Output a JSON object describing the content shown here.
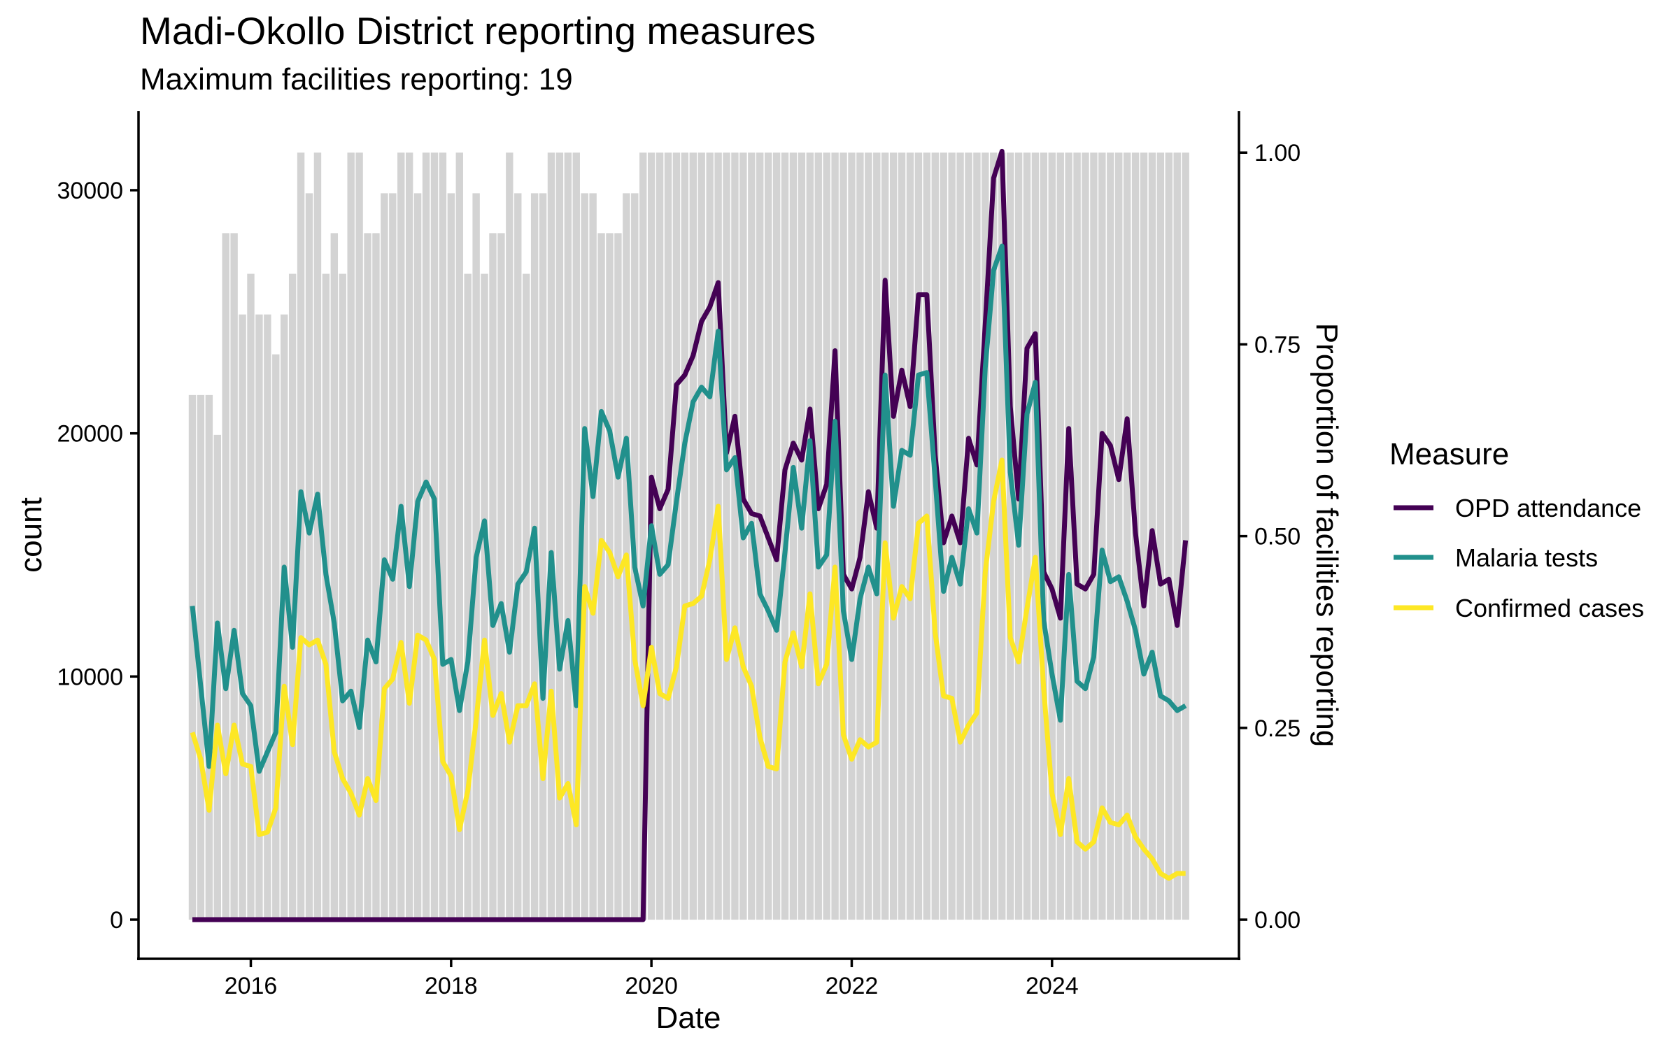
{
  "chart_data": {
    "type": "line",
    "title": "Madi-Okollo District reporting measures",
    "subtitle": "Maximum facilities reporting: 19",
    "xlabel": "Date",
    "ylabel": "count",
    "y2label": "Proportion of facilities reporting",
    "xlim": [
      "2014-12",
      "2025-11"
    ],
    "ylim": [
      -1610,
      33250
    ],
    "y2lim": [
      -0.051,
      1.054
    ],
    "grid": false,
    "legend": {
      "title": "Measure",
      "position": "right"
    },
    "x_ticks": [
      "2016",
      "2018",
      "2020",
      "2022",
      "2024"
    ],
    "y_ticks": [
      0,
      10000,
      20000,
      30000
    ],
    "y_tick_labels": [
      "0",
      "10000",
      "20000",
      "30000"
    ],
    "y2_ticks": [
      0,
      0.25,
      0.5,
      0.75,
      1
    ],
    "y2_tick_labels": [
      "0.00",
      "0.25",
      "0.50",
      "0.75",
      "1.00"
    ],
    "x": [
      "2015-06",
      "2015-07",
      "2015-08",
      "2015-09",
      "2015-10",
      "2015-11",
      "2015-12",
      "2016-01",
      "2016-02",
      "2016-03",
      "2016-04",
      "2016-05",
      "2016-06",
      "2016-07",
      "2016-08",
      "2016-09",
      "2016-10",
      "2016-11",
      "2016-12",
      "2017-01",
      "2017-02",
      "2017-03",
      "2017-04",
      "2017-05",
      "2017-06",
      "2017-07",
      "2017-08",
      "2017-09",
      "2017-10",
      "2017-11",
      "2017-12",
      "2018-01",
      "2018-02",
      "2018-03",
      "2018-04",
      "2018-05",
      "2018-06",
      "2018-07",
      "2018-08",
      "2018-09",
      "2018-10",
      "2018-11",
      "2018-12",
      "2019-01",
      "2019-02",
      "2019-03",
      "2019-04",
      "2019-05",
      "2019-06",
      "2019-07",
      "2019-08",
      "2019-09",
      "2019-10",
      "2019-11",
      "2019-12",
      "2020-01",
      "2020-02",
      "2020-03",
      "2020-04",
      "2020-05",
      "2020-06",
      "2020-07",
      "2020-08",
      "2020-09",
      "2020-10",
      "2020-11",
      "2020-12",
      "2021-01",
      "2021-02",
      "2021-03",
      "2021-04",
      "2021-05",
      "2021-06",
      "2021-07",
      "2021-08",
      "2021-09",
      "2021-10",
      "2021-11",
      "2021-12",
      "2022-01",
      "2022-02",
      "2022-03",
      "2022-04",
      "2022-05",
      "2022-06",
      "2022-07",
      "2022-08",
      "2022-09",
      "2022-10",
      "2022-11",
      "2022-12",
      "2023-01",
      "2023-02",
      "2023-03",
      "2023-04",
      "2023-05",
      "2023-06",
      "2023-07",
      "2023-08",
      "2023-09",
      "2023-10",
      "2023-11",
      "2023-12",
      "2024-01",
      "2024-02",
      "2024-03",
      "2024-04",
      "2024-05",
      "2024-06",
      "2024-07",
      "2024-08",
      "2024-09",
      "2024-10",
      "2024-11",
      "2024-12",
      "2025-01",
      "2025-02",
      "2025-03",
      "2025-04",
      "2025-05"
    ],
    "bars": {
      "name": "Proportion of facilities reporting",
      "axis": "right",
      "color": "#D3D3D3",
      "values": [
        0.684,
        0.684,
        0.684,
        0.632,
        0.895,
        0.895,
        0.789,
        0.842,
        0.789,
        0.789,
        0.737,
        0.789,
        0.842,
        1,
        0.947,
        1,
        0.842,
        0.895,
        0.842,
        1,
        1,
        0.895,
        0.895,
        0.947,
        0.947,
        1,
        1,
        0.947,
        1,
        1,
        1,
        0.947,
        1,
        0.842,
        0.947,
        0.842,
        0.895,
        0.895,
        1,
        0.947,
        0.842,
        0.947,
        0.947,
        1,
        1,
        1,
        1,
        0.947,
        0.947,
        0.895,
        0.895,
        0.895,
        0.947,
        0.947,
        1,
        1,
        1,
        1,
        1,
        1,
        1,
        1,
        1,
        1,
        1,
        1,
        1,
        1,
        1,
        1,
        1,
        1,
        1,
        1,
        1,
        1,
        1,
        1,
        1,
        1,
        1,
        1,
        1,
        1,
        1,
        1,
        1,
        1,
        1,
        1,
        1,
        1,
        1,
        1,
        1,
        1,
        1,
        1,
        1,
        1,
        1,
        1,
        1,
        1,
        1,
        1,
        1,
        1,
        1,
        1,
        1,
        1,
        1,
        1,
        1,
        1,
        1,
        1,
        1,
        1
      ]
    },
    "series": [
      {
        "name": "OPD attendance",
        "color": "#440154",
        "values": [
          0,
          0,
          0,
          0,
          0,
          0,
          0,
          0,
          0,
          0,
          0,
          0,
          0,
          0,
          0,
          0,
          0,
          0,
          0,
          0,
          0,
          0,
          0,
          0,
          0,
          0,
          0,
          0,
          0,
          0,
          0,
          0,
          0,
          0,
          0,
          0,
          0,
          0,
          0,
          0,
          0,
          0,
          0,
          0,
          0,
          0,
          0,
          0,
          0,
          0,
          0,
          0,
          0,
          0,
          0,
          18200,
          16900,
          17700,
          22000,
          22400,
          23200,
          24600,
          25200,
          26200,
          19200,
          20700,
          17300,
          16700,
          16600,
          15700,
          14800,
          18500,
          19600,
          18900,
          21000,
          16900,
          17900,
          23400,
          14200,
          13600,
          14900,
          17600,
          16100,
          26300,
          20700,
          22600,
          21100,
          25700,
          25700,
          19100,
          15500,
          16600,
          15500,
          19800,
          18700,
          24500,
          30500,
          31600,
          21100,
          17300,
          23500,
          24100,
          14300,
          13600,
          12400,
          20200,
          13800,
          13600,
          14200,
          20000,
          19500,
          18100,
          20600,
          15900,
          12900,
          16000,
          13800,
          14000,
          12100,
          15600
        ]
      },
      {
        "name": "Malaria tests",
        "color": "#21908C",
        "values": [
          12900,
          9600,
          6300,
          12200,
          9500,
          11900,
          9300,
          8800,
          6100,
          6900,
          7700,
          14500,
          11200,
          17600,
          15900,
          17500,
          14200,
          12200,
          9000,
          9400,
          7900,
          11500,
          10600,
          14800,
          14000,
          17000,
          13700,
          17200,
          18000,
          17300,
          10500,
          10700,
          8600,
          10600,
          14900,
          16400,
          12100,
          13000,
          11000,
          13800,
          14300,
          16100,
          9100,
          15100,
          10300,
          12300,
          8800,
          20200,
          17400,
          20900,
          20100,
          18200,
          19800,
          14500,
          12900,
          16200,
          14200,
          14600,
          17200,
          19600,
          21300,
          21900,
          21500,
          24200,
          18500,
          19000,
          15700,
          16300,
          13400,
          12700,
          11900,
          15100,
          18600,
          16100,
          19700,
          14500,
          15000,
          20500,
          12700,
          10700,
          13200,
          14500,
          13400,
          22400,
          17000,
          19300,
          19100,
          22400,
          22500,
          18100,
          13500,
          14900,
          13800,
          16900,
          15900,
          22700,
          26700,
          27700,
          18400,
          15400,
          20800,
          22100,
          12300,
          10100,
          8200,
          14200,
          9800,
          9500,
          10800,
          15200,
          13900,
          14100,
          13100,
          11900,
          10100,
          11000,
          9200,
          9000,
          8600,
          8800
        ]
      },
      {
        "name": "Confirmed cases",
        "color": "#FDE725",
        "values": [
          7700,
          6600,
          4500,
          8000,
          6000,
          8000,
          6400,
          6300,
          3500,
          3600,
          4600,
          9600,
          7200,
          11600,
          11300,
          11500,
          10500,
          6900,
          5800,
          5200,
          4300,
          5800,
          4900,
          9500,
          9900,
          11400,
          8900,
          11700,
          11500,
          10700,
          6500,
          5900,
          3700,
          5300,
          8200,
          11500,
          8400,
          9300,
          7300,
          8800,
          8800,
          9700,
          5800,
          9400,
          5000,
          5600,
          3900,
          13700,
          12600,
          15600,
          15100,
          14100,
          15000,
          10700,
          8800,
          11200,
          9300,
          9100,
          10400,
          12900,
          13000,
          13300,
          14800,
          17000,
          10700,
          12000,
          10400,
          9600,
          7500,
          6300,
          6200,
          10600,
          11800,
          10400,
          13400,
          9700,
          10500,
          14500,
          7600,
          6600,
          7400,
          7100,
          7300,
          15500,
          12400,
          13700,
          13200,
          16300,
          16600,
          11800,
          9200,
          9100,
          7300,
          8000,
          8500,
          14300,
          17200,
          18900,
          11600,
          10600,
          12800,
          14900,
          9500,
          5200,
          3500,
          5800,
          3200,
          2900,
          3200,
          4600,
          4000,
          3900,
          4300,
          3400,
          2900,
          2500,
          1900,
          1700,
          1900,
          1900
        ]
      }
    ]
  }
}
